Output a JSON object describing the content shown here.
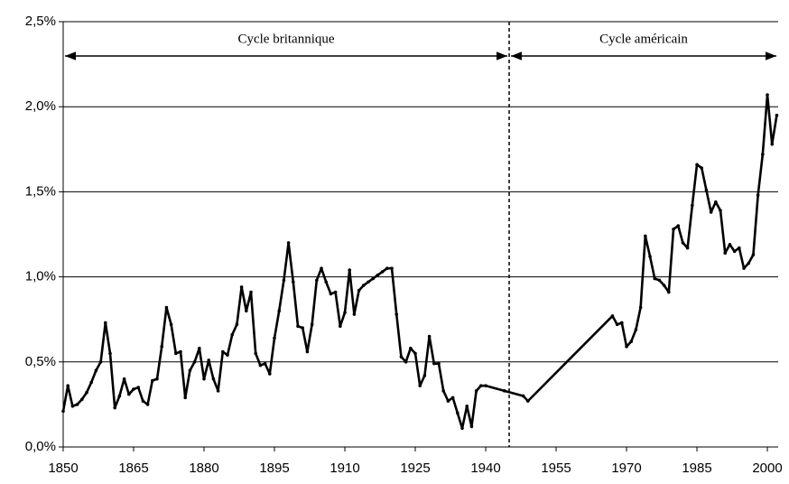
{
  "chart_data": {
    "type": "line",
    "annotations": [
      "Cycle britannique",
      "Cycle américain"
    ],
    "divider_x": 1945,
    "x": [
      1850,
      1851,
      1852,
      1853,
      1854,
      1855,
      1856,
      1857,
      1858,
      1859,
      1860,
      1861,
      1862,
      1863,
      1864,
      1865,
      1866,
      1867,
      1868,
      1869,
      1870,
      1871,
      1872,
      1873,
      1874,
      1875,
      1876,
      1877,
      1878,
      1879,
      1880,
      1881,
      1882,
      1883,
      1884,
      1885,
      1886,
      1887,
      1888,
      1889,
      1890,
      1891,
      1892,
      1893,
      1894,
      1895,
      1896,
      1897,
      1898,
      1899,
      1900,
      1901,
      1902,
      1903,
      1904,
      1905,
      1906,
      1907,
      1908,
      1909,
      1910,
      1911,
      1912,
      1913,
      1914,
      1915,
      1916,
      1917,
      1918,
      1919,
      1920,
      1921,
      1922,
      1923,
      1924,
      1925,
      1926,
      1927,
      1928,
      1929,
      1930,
      1931,
      1932,
      1933,
      1934,
      1935,
      1936,
      1937,
      1938,
      1939,
      1940,
      1944,
      1948,
      1949,
      1967,
      1968,
      1969,
      1970,
      1971,
      1972,
      1973,
      1974,
      1975,
      1976,
      1977,
      1978,
      1979,
      1980,
      1981,
      1982,
      1983,
      1984,
      1985,
      1986,
      1987,
      1988,
      1989,
      1990,
      1991,
      1992,
      1993,
      1994,
      1995,
      1996,
      1997,
      1998,
      1999,
      2000,
      2001,
      2002
    ],
    "series": [
      {
        "color": "#000000",
        "values": [
          0.21,
          0.36,
          0.24,
          0.25,
          0.28,
          0.32,
          0.38,
          0.45,
          0.5,
          0.73,
          0.55,
          0.23,
          0.3,
          0.4,
          0.31,
          0.34,
          0.35,
          0.27,
          0.25,
          0.39,
          0.4,
          0.59,
          0.82,
          0.72,
          0.55,
          0.56,
          0.29,
          0.45,
          0.5,
          0.58,
          0.4,
          0.51,
          0.4,
          0.33,
          0.56,
          0.54,
          0.66,
          0.72,
          0.94,
          0.8,
          0.91,
          0.55,
          0.48,
          0.49,
          0.43,
          0.64,
          0.8,
          0.98,
          1.2,
          0.97,
          0.71,
          0.7,
          0.56,
          0.72,
          0.98,
          1.05,
          0.97,
          0.9,
          0.91,
          0.71,
          0.79,
          1.04,
          0.78,
          0.92,
          0.95,
          0.97,
          0.99,
          1.01,
          1.03,
          1.05,
          1.05,
          0.78,
          0.53,
          0.5,
          0.58,
          0.55,
          0.36,
          0.42,
          0.65,
          0.49,
          0.49,
          0.33,
          0.27,
          0.29,
          0.2,
          0.11,
          0.24,
          0.12,
          0.33,
          0.36,
          0.36,
          0.33,
          0.3,
          0.27,
          0.77,
          0.72,
          0.73,
          0.59,
          0.62,
          0.69,
          0.82,
          1.24,
          1.12,
          0.99,
          0.98,
          0.95,
          0.91,
          1.28,
          1.3,
          1.2,
          1.17,
          1.42,
          1.66,
          1.64,
          1.51,
          1.38,
          1.44,
          1.39,
          1.14,
          1.19,
          1.15,
          1.17,
          1.05,
          1.08,
          1.13,
          1.48,
          1.72,
          2.07,
          1.78,
          1.95
        ]
      }
    ],
    "xlim": [
      1850,
      2002.3
    ],
    "xticks": [
      1850,
      1865,
      1880,
      1895,
      1910,
      1925,
      1940,
      1955,
      1970,
      1985,
      2000
    ],
    "ylim": [
      0,
      2.5
    ],
    "yticks": [
      {
        "value": 0,
        "label": "0,0%"
      },
      {
        "value": 0.5,
        "label": "0,5%"
      },
      {
        "value": 1,
        "label": "1,0%"
      },
      {
        "value": 1.5,
        "label": "1,5%"
      },
      {
        "value": 2,
        "label": "2,0%"
      },
      {
        "value": 2.5,
        "label": "2,5%"
      }
    ],
    "grid": true
  }
}
